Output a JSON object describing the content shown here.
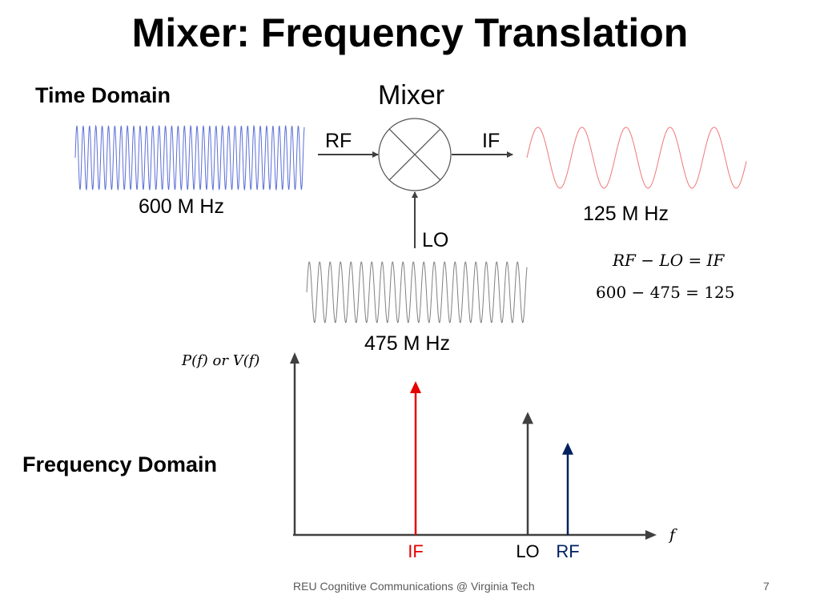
{
  "slide": {
    "title": "Mixer: Frequency Translation",
    "time_domain_label": "Time Domain",
    "frequency_domain_label": "Frequency Domain",
    "footer": "REU Cognitive Communications @ Virginia Tech",
    "page_number": "7"
  },
  "time_domain": {
    "mixer_label": "Mixer",
    "rf_input_label": "RF",
    "if_output_label": "IF",
    "lo_input_label": "LO",
    "rf_wave": {
      "frequency_label": "600 M Hz",
      "color": "#5b6fd6"
    },
    "lo_wave": {
      "frequency_label": "475 M Hz",
      "color": "#808080"
    },
    "if_wave": {
      "frequency_label": "125 M Hz",
      "color": "#f07878"
    },
    "equation_symbolic": "RF − LO = IF",
    "equation_numeric": "600 − 475 = 125"
  },
  "chart_data": {
    "type": "bar",
    "ylabel": "P(f) or V(f)",
    "xlabel": "f",
    "categories": [
      "IF",
      "LO",
      "RF"
    ],
    "x": [
      125,
      475,
      600
    ],
    "values": [
      1.0,
      0.8,
      0.6
    ],
    "colors": {
      "IF": "#e60000",
      "LO": "#404040",
      "RF": "#002060"
    }
  }
}
